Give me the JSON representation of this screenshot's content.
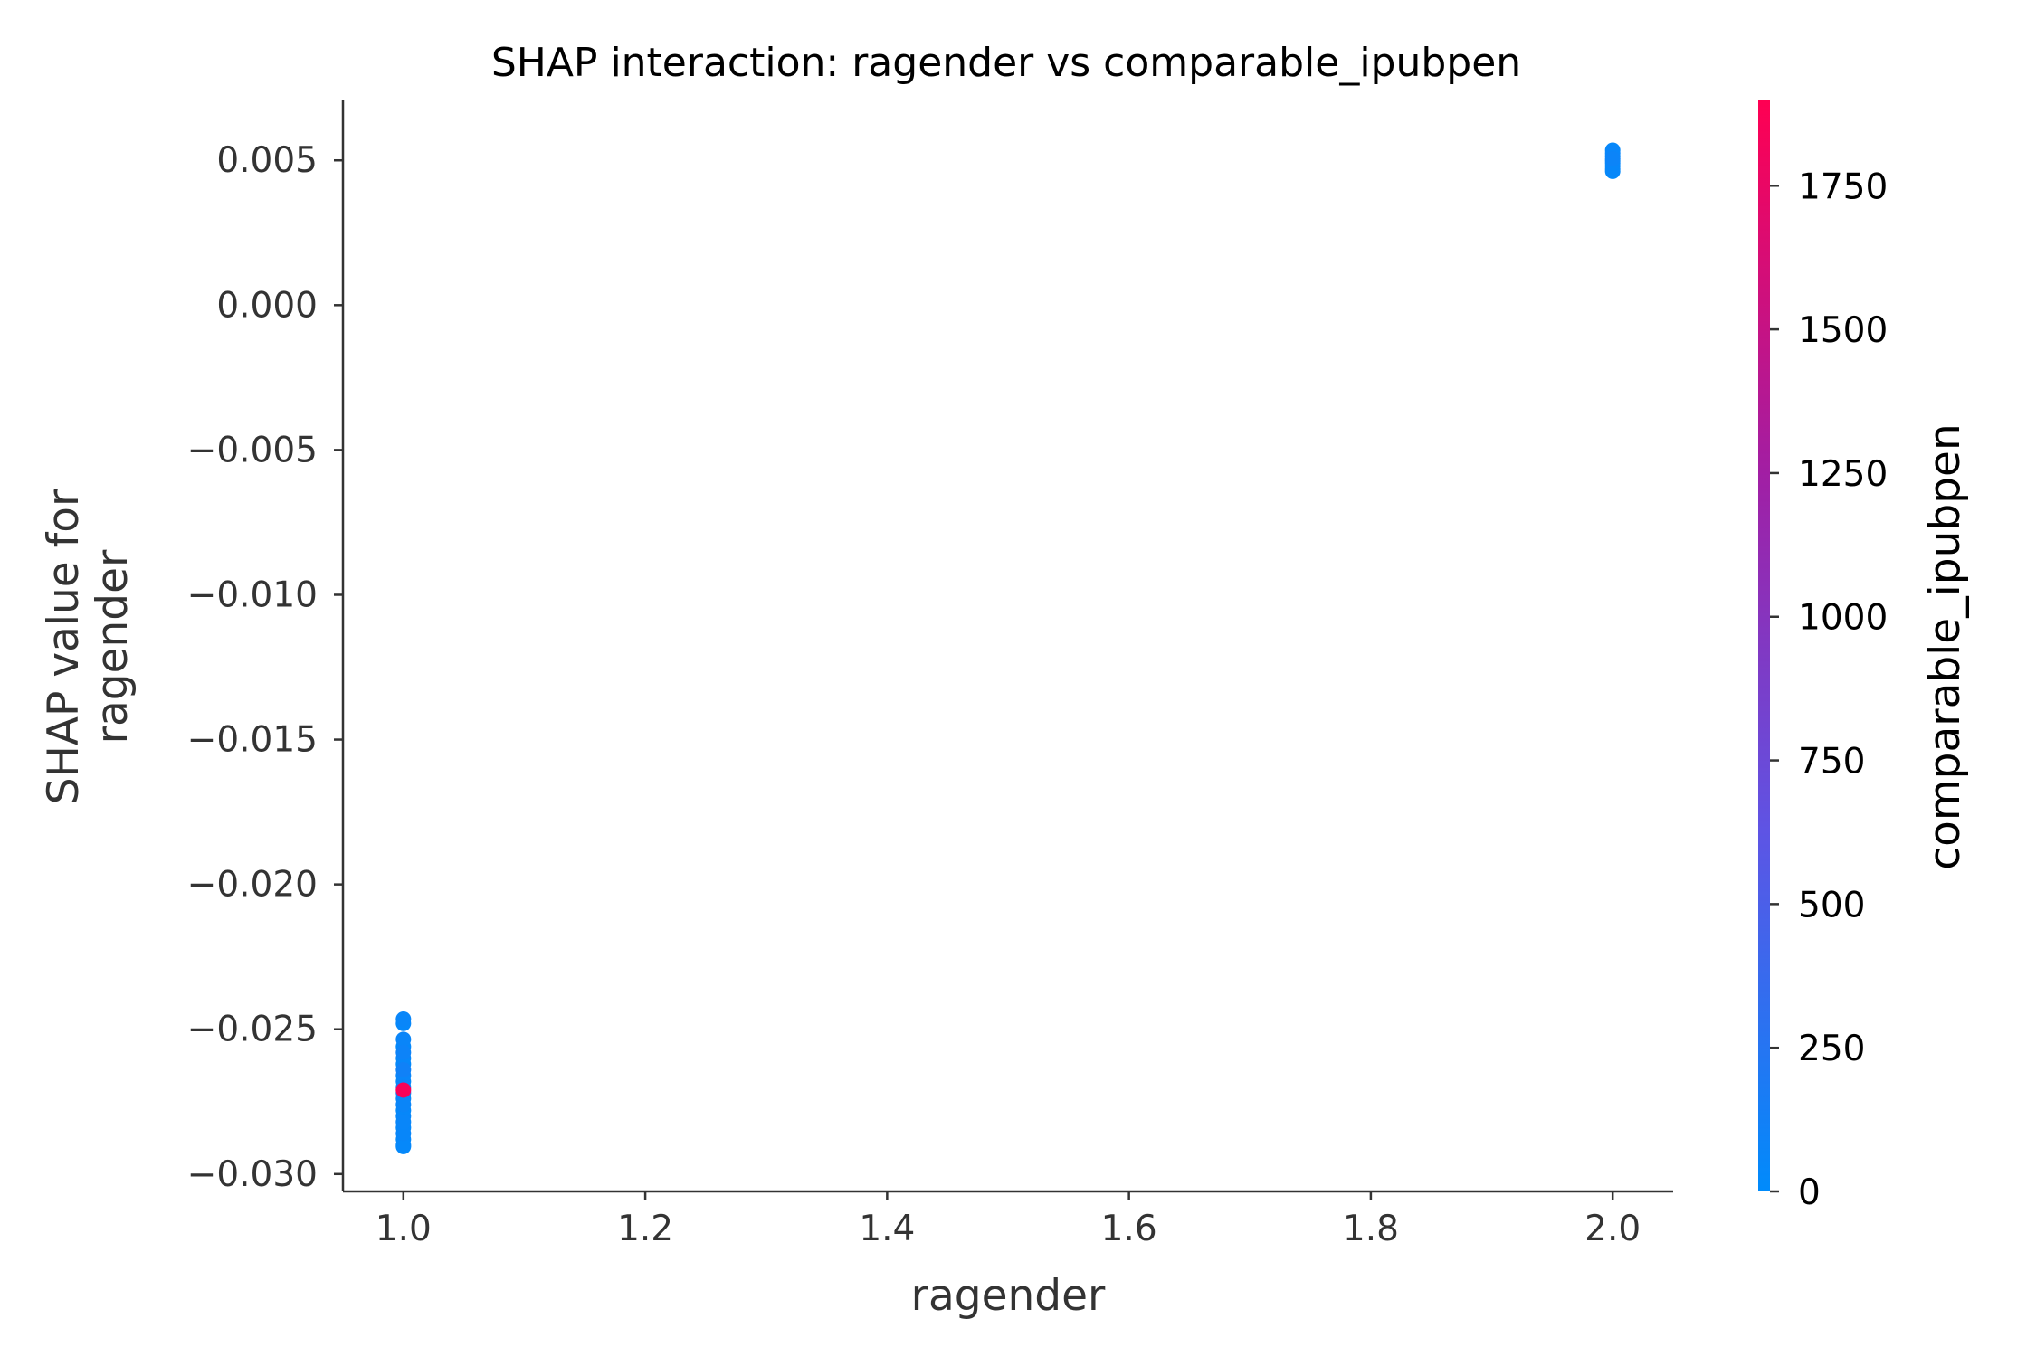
{
  "chart_data": {
    "type": "scatter",
    "title": "SHAP interaction: ragender vs comparable_ipubpen",
    "xlabel": "ragender",
    "ylabel_lines": [
      "SHAP value for",
      "ragender"
    ],
    "xlim": [
      0.95,
      2.05
    ],
    "ylim": [
      -0.0306,
      0.0071
    ],
    "xticks": [
      1.0,
      1.2,
      1.4,
      1.6,
      1.8,
      2.0
    ],
    "xtick_labels": [
      "1.0",
      "1.2",
      "1.4",
      "1.6",
      "1.8",
      "2.0"
    ],
    "yticks": [
      0.005,
      0.0,
      -0.005,
      -0.01,
      -0.015,
      -0.02,
      -0.025,
      -0.03
    ],
    "ytick_labels": [
      "0.005",
      "0.000",
      "−0.005",
      "−0.010",
      "−0.015",
      "−0.020",
      "−0.025",
      "−0.030"
    ],
    "grid": false,
    "colorbar": {
      "label": "comparable_ipubpen",
      "range": [
        0,
        1900
      ],
      "ticks": [
        0,
        250,
        500,
        750,
        1000,
        1250,
        1500,
        1750
      ],
      "tick_labels": [
        "0",
        "250",
        "500",
        "750",
        "1000",
        "1250",
        "1500",
        "1750"
      ],
      "colormap": [
        "#008bfb",
        "#5e54e4",
        "#a21ea3",
        "#ff0052"
      ]
    },
    "points": [
      {
        "x": 2.0,
        "y": 0.00535,
        "c": 40
      },
      {
        "x": 2.0,
        "y": 0.00525,
        "c": 60
      },
      {
        "x": 2.0,
        "y": 0.00515,
        "c": 30
      },
      {
        "x": 2.0,
        "y": 0.00505,
        "c": 80
      },
      {
        "x": 2.0,
        "y": 0.00498,
        "c": 20
      },
      {
        "x": 2.0,
        "y": 0.0049,
        "c": 50
      },
      {
        "x": 2.0,
        "y": 0.0048,
        "c": 35
      },
      {
        "x": 2.0,
        "y": 0.0047,
        "c": 45
      },
      {
        "x": 2.0,
        "y": 0.00462,
        "c": 25
      },
      {
        "x": 1.0,
        "y": -0.02465,
        "c": 60
      },
      {
        "x": 1.0,
        "y": -0.0248,
        "c": 40
      },
      {
        "x": 1.0,
        "y": -0.02535,
        "c": 70
      },
      {
        "x": 1.0,
        "y": -0.0256,
        "c": 30
      },
      {
        "x": 1.0,
        "y": -0.0258,
        "c": 90
      },
      {
        "x": 1.0,
        "y": -0.026,
        "c": 50
      },
      {
        "x": 1.0,
        "y": -0.0262,
        "c": 20
      },
      {
        "x": 1.0,
        "y": -0.0264,
        "c": 110
      },
      {
        "x": 1.0,
        "y": -0.0266,
        "c": 60
      },
      {
        "x": 1.0,
        "y": -0.0268,
        "c": 40
      },
      {
        "x": 1.0,
        "y": -0.027,
        "c": 80
      },
      {
        "x": 1.0,
        "y": -0.0272,
        "c": 30
      },
      {
        "x": 1.0,
        "y": -0.0274,
        "c": 50
      },
      {
        "x": 1.0,
        "y": -0.0276,
        "c": 70
      },
      {
        "x": 1.0,
        "y": -0.0278,
        "c": 25
      },
      {
        "x": 1.0,
        "y": -0.028,
        "c": 45
      },
      {
        "x": 1.0,
        "y": -0.0282,
        "c": 60
      },
      {
        "x": 1.0,
        "y": -0.0284,
        "c": 35
      },
      {
        "x": 1.0,
        "y": -0.0286,
        "c": 55
      },
      {
        "x": 1.0,
        "y": -0.0288,
        "c": 30
      },
      {
        "x": 1.0,
        "y": -0.029,
        "c": 40
      },
      {
        "x": 1.0,
        "y": -0.02905,
        "c": 20
      },
      {
        "x": 1.0,
        "y": -0.0271,
        "c": 1850
      }
    ]
  }
}
